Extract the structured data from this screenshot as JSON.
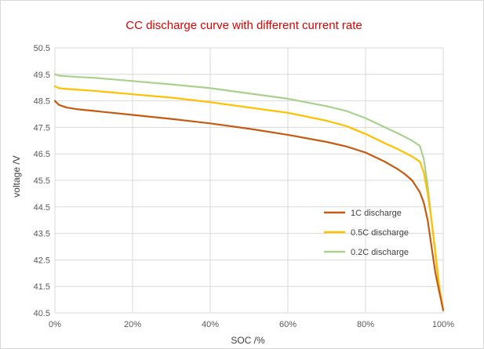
{
  "chart_data": {
    "type": "line",
    "title": "CC discharge curve with different current rate",
    "title_color": "#e00000",
    "xlabel": "SOC /%",
    "ylabel": "voltage /V",
    "xlim": [
      0,
      100
    ],
    "ylim": [
      40.5,
      50.5
    ],
    "x_ticks": [
      0,
      20,
      40,
      60,
      80,
      100
    ],
    "x_tick_labels": [
      "0%",
      "20%",
      "40%",
      "60%",
      "80%",
      "100%"
    ],
    "y_ticks": [
      40.5,
      41.5,
      42.5,
      43.5,
      44.5,
      45.5,
      46.5,
      47.5,
      48.5,
      49.5,
      50.5
    ],
    "y_tick_labels": [
      "40.5",
      "41.5",
      "42.5",
      "43.5",
      "44.5",
      "45.5",
      "46.5",
      "47.5",
      "48.5",
      "49.5",
      "50.5"
    ],
    "grid": true,
    "legend_position": "right",
    "series": [
      {
        "name": "1C discharge",
        "color": "#c55a11",
        "x": [
          0,
          1,
          3,
          6,
          10,
          20,
          30,
          40,
          50,
          60,
          70,
          75,
          80,
          85,
          88,
          90,
          92,
          94,
          95,
          96,
          97,
          98,
          99,
          100
        ],
        "y": [
          48.5,
          48.35,
          48.25,
          48.18,
          48.12,
          47.97,
          47.82,
          47.65,
          47.45,
          47.22,
          46.95,
          46.78,
          46.55,
          46.2,
          45.95,
          45.75,
          45.5,
          45.05,
          44.65,
          44.0,
          43.0,
          42.0,
          41.3,
          40.6
        ]
      },
      {
        "name": "0.5C discharge",
        "color": "#ffc000",
        "x": [
          0,
          1,
          3,
          6,
          10,
          20,
          30,
          40,
          50,
          60,
          70,
          75,
          80,
          85,
          88,
          90,
          92,
          94,
          95,
          96,
          97,
          98,
          99,
          100
        ],
        "y": [
          49.05,
          48.98,
          48.95,
          48.92,
          48.88,
          48.75,
          48.62,
          48.45,
          48.25,
          48.05,
          47.75,
          47.55,
          47.25,
          46.9,
          46.7,
          46.55,
          46.4,
          46.2,
          45.8,
          45.0,
          44.0,
          42.8,
          41.5,
          40.6
        ]
      },
      {
        "name": "0.2C discharge",
        "color": "#a9d18e",
        "x": [
          0,
          1,
          3,
          6,
          10,
          20,
          30,
          40,
          50,
          60,
          70,
          75,
          80,
          85,
          88,
          90,
          92,
          94,
          95,
          96,
          97,
          98,
          99,
          100
        ],
        "y": [
          49.5,
          49.45,
          49.43,
          49.4,
          49.37,
          49.25,
          49.12,
          48.98,
          48.78,
          48.58,
          48.3,
          48.12,
          47.85,
          47.5,
          47.3,
          47.15,
          47.0,
          46.8,
          46.3,
          45.3,
          44.0,
          42.7,
          41.4,
          40.6
        ]
      }
    ]
  }
}
